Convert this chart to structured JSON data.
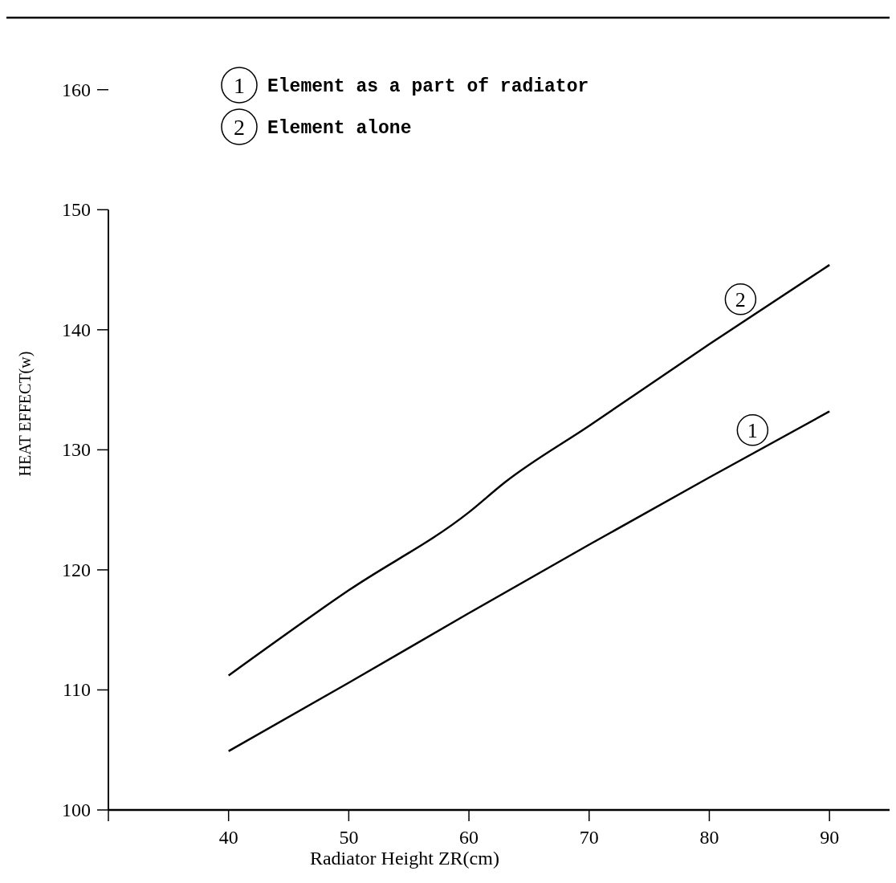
{
  "chart_data": {
    "type": "line",
    "xlabel": "Radiator Height ZR(cm)",
    "ylabel": "HEAT EFFECT(w)",
    "xlim": [
      30,
      95
    ],
    "xticks": [
      {
        "value": 30,
        "label": null
      },
      40,
      50,
      60,
      70,
      80,
      90
    ],
    "ylim": [
      100,
      166
    ],
    "yticks": [
      100,
      110,
      120,
      130,
      140,
      150,
      160
    ],
    "legend": "top left",
    "line_style": "solid",
    "marker": "none",
    "grid": false,
    "series": [
      {
        "name": "Element as a part of radiator",
        "color": "#000000",
        "x": [
          40,
          50,
          60,
          70,
          80,
          90
        ],
        "values": [
          104.9,
          110.6,
          116.4,
          122.1,
          127.7,
          133.2
        ]
      },
      {
        "name": "Element alone",
        "color": "#000000",
        "x": [
          40,
          50,
          60,
          63,
          70,
          80,
          90
        ],
        "values": [
          111.2,
          118.3,
          124.8,
          127.3,
          132,
          138.8,
          145.4
        ]
      }
    ],
    "annotations": [
      {
        "text": "1",
        "x": 84,
        "y": 129.9
      },
      {
        "text": "2",
        "x": 83,
        "y": 140.8
      }
    ]
  }
}
